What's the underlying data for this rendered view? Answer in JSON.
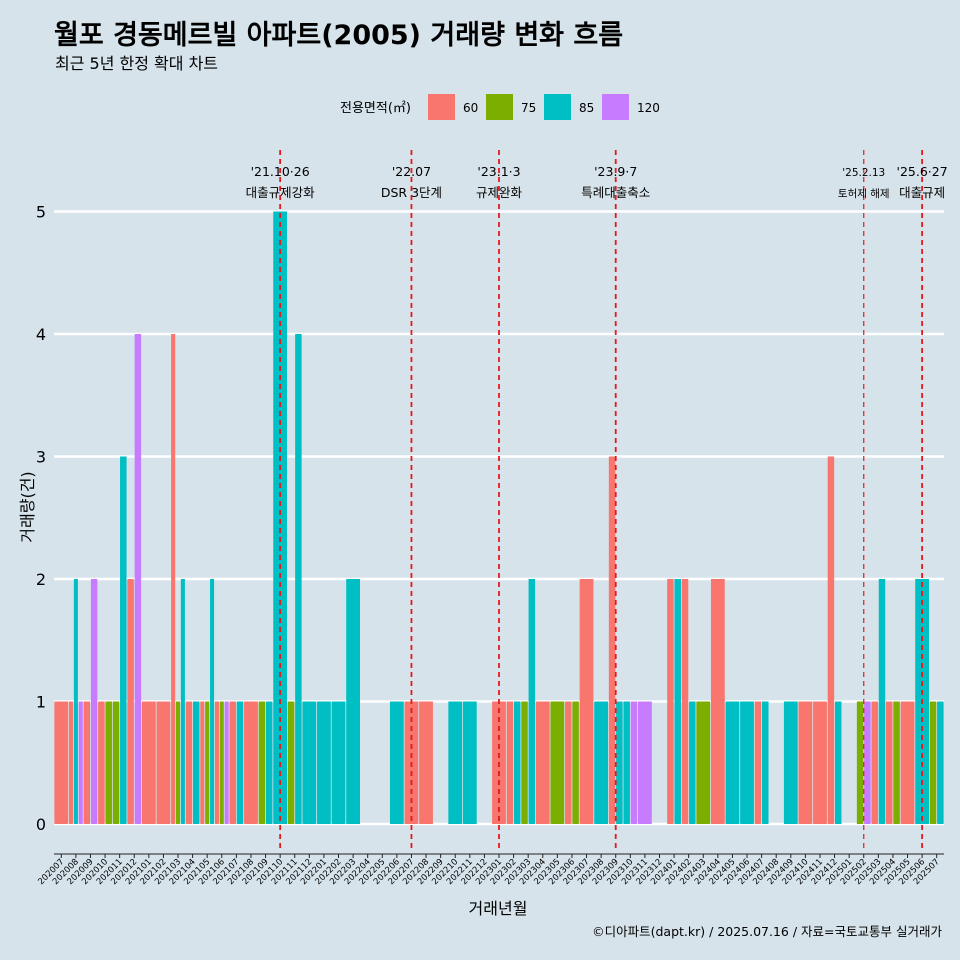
{
  "title": "월포 경동메르빌 아파트(2005) 거래량 변화 흐름",
  "subtitle": "최근 5년 한정 확대 차트",
  "caption": "©디아파트(dapt.kr) / 2025.07.16 / 자료=국토교통부 실거래가",
  "colors": {
    "background": "#d6e3ea",
    "gridline": "#ffffff",
    "vline": "#e31a1c"
  },
  "legend": {
    "title": "전용면적(㎡)",
    "items": [
      {
        "label": "60",
        "color": "#F8766D"
      },
      {
        "label": "75",
        "color": "#7CAE00"
      },
      {
        "label": "85",
        "color": "#00BFC4"
      },
      {
        "label": "120",
        "color": "#C77CFF"
      }
    ]
  },
  "chart_data": {
    "type": "bar",
    "subtype": "dodged",
    "xlabel": "거래년월",
    "ylabel": "거래량(건)",
    "ylim": [
      -0.25,
      5.4
    ],
    "yticks": [
      0,
      1,
      2,
      3,
      4,
      5
    ],
    "categories": [
      "202007",
      "202008",
      "202009",
      "202010",
      "202011",
      "202012",
      "202101",
      "202102",
      "202103",
      "202104",
      "202105",
      "202106",
      "202107",
      "202108",
      "202109",
      "202110",
      "202111",
      "202112",
      "202201",
      "202202",
      "202203",
      "202204",
      "202205",
      "202206",
      "202207",
      "202208",
      "202209",
      "202210",
      "202211",
      "202212",
      "202301",
      "202302",
      "202303",
      "202304",
      "202305",
      "202306",
      "202307",
      "202308",
      "202309",
      "202310",
      "202311",
      "202312",
      "202401",
      "202402",
      "202403",
      "202404",
      "202405",
      "202406",
      "202407",
      "202408",
      "202409",
      "202410",
      "202411",
      "202412",
      "202501",
      "202502",
      "202503",
      "202504",
      "202505",
      "202506",
      "202507"
    ],
    "series": [
      {
        "name": "60",
        "values": [
          1,
          1,
          1,
          1,
          0,
          2,
          1,
          1,
          4,
          1,
          1,
          1,
          1,
          1,
          0,
          0,
          0,
          0,
          0,
          0,
          0,
          0,
          0,
          0,
          1,
          1,
          0,
          0,
          0,
          0,
          1,
          1,
          0,
          1,
          0,
          1,
          2,
          0,
          3,
          0,
          0,
          0,
          2,
          2,
          0,
          2,
          0,
          0,
          1,
          0,
          0,
          1,
          1,
          3,
          0,
          0,
          1,
          1,
          1,
          0,
          0
        ]
      },
      {
        "name": "75",
        "values": [
          0,
          0,
          0,
          1,
          1,
          0,
          0,
          0,
          1,
          0,
          1,
          1,
          0,
          0,
          1,
          0,
          1,
          0,
          0,
          0,
          0,
          0,
          0,
          0,
          0,
          0,
          0,
          0,
          0,
          0,
          0,
          0,
          1,
          0,
          1,
          1,
          0,
          0,
          0,
          0,
          0,
          0,
          0,
          0,
          1,
          0,
          0,
          0,
          0,
          0,
          0,
          0,
          0,
          0,
          0,
          1,
          0,
          1,
          0,
          0,
          1
        ]
      },
      {
        "name": "85",
        "values": [
          0,
          2,
          0,
          0,
          3,
          0,
          0,
          0,
          2,
          1,
          2,
          0,
          1,
          0,
          1,
          5,
          4,
          1,
          1,
          1,
          2,
          0,
          0,
          1,
          0,
          0,
          0,
          1,
          1,
          0,
          0,
          1,
          2,
          0,
          0,
          0,
          0,
          1,
          1,
          1,
          0,
          0,
          2,
          1,
          0,
          0,
          1,
          1,
          1,
          0,
          1,
          0,
          0,
          1,
          0,
          0,
          2,
          0,
          0,
          2,
          1
        ]
      },
      {
        "name": "120",
        "values": [
          0,
          1,
          2,
          0,
          0,
          4,
          0,
          0,
          0,
          0,
          0,
          1,
          0,
          0,
          0,
          0,
          0,
          0,
          0,
          0,
          0,
          0,
          0,
          0,
          0,
          0,
          0,
          0,
          0,
          0,
          0,
          0,
          0,
          0,
          0,
          0,
          0,
          0,
          0,
          1,
          1,
          0,
          0,
          0,
          0,
          0,
          0,
          0,
          0,
          0,
          0,
          0,
          0,
          0,
          0,
          1,
          0,
          0,
          0,
          0,
          0
        ]
      }
    ],
    "annotations": [
      {
        "x": "202110",
        "date": "'21.10·26",
        "text": "대출규제강화",
        "small": false
      },
      {
        "x": "202207",
        "date": "'22.07",
        "text": "DSR 3단계",
        "small": false
      },
      {
        "x": "202301",
        "date": "'23.1·3",
        "text": "규제완화",
        "small": false
      },
      {
        "x": "202309",
        "date": "'23.9·7",
        "text": "특례대출축소",
        "small": false
      },
      {
        "x": "202502",
        "date": "'25.2.13",
        "text": "토허제 해제",
        "small": true
      },
      {
        "x": "202506",
        "date": "'25.6·27",
        "text": "대출규제",
        "small": false
      }
    ]
  }
}
